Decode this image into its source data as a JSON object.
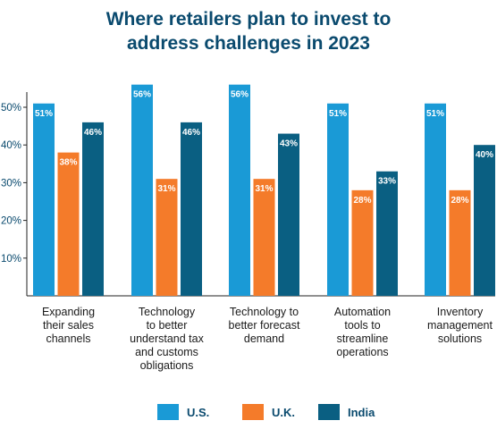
{
  "chart_data": {
    "type": "bar",
    "title_lines": [
      "Where retailers plan to invest to",
      "address challenges in 2023"
    ],
    "categories": [
      [
        "Expanding",
        "their sales",
        "channels"
      ],
      [
        "Technology",
        "to better",
        "understand tax",
        "and customs",
        "obligations"
      ],
      [
        "Technology to",
        "better forecast",
        "demand"
      ],
      [
        "Automation",
        "tools to",
        "streamline",
        "operations"
      ],
      [
        "Inventory",
        "management",
        "solutions"
      ]
    ],
    "series": [
      {
        "name": "U.S.",
        "color": "#1a9ad6",
        "values": [
          51,
          56,
          56,
          51,
          51
        ],
        "labels": [
          "51%",
          "56%",
          "56%",
          "51%",
          "51%"
        ]
      },
      {
        "name": "U.K.",
        "color": "#f47b2a",
        "values": [
          38,
          31,
          31,
          28,
          28
        ],
        "labels": [
          "38%",
          "31%",
          "31%",
          "28%",
          "28%"
        ]
      },
      {
        "name": "India",
        "color": "#0a5f82",
        "values": [
          46,
          46,
          43,
          33,
          40
        ],
        "labels": [
          "46%",
          "46%",
          "43%",
          "33%",
          "40%"
        ]
      }
    ],
    "yticks": [
      "10%",
      "20%",
      "30%",
      "40%",
      "50%"
    ],
    "ytick_values": [
      10,
      20,
      30,
      40,
      50
    ],
    "ylim": [
      0,
      57
    ],
    "grid": false,
    "legend_position": "bottom-center"
  }
}
